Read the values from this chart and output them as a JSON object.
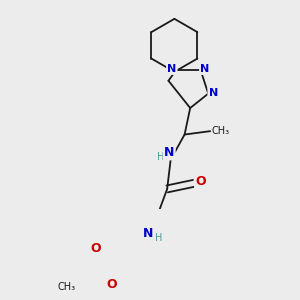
{
  "bg_color": "#ececec",
  "bond_color": "#1a1a1a",
  "N_color": "#0000cc",
  "O_color": "#cc0000",
  "H_color": "#4a9a9a",
  "font_size": 8.0,
  "line_width": 1.3,
  "dbo": 0.012,
  "fig_w": 3.0,
  "fig_h": 3.0,
  "dpi": 100,
  "xlim": [
    0,
    300
  ],
  "ylim": [
    0,
    300
  ]
}
